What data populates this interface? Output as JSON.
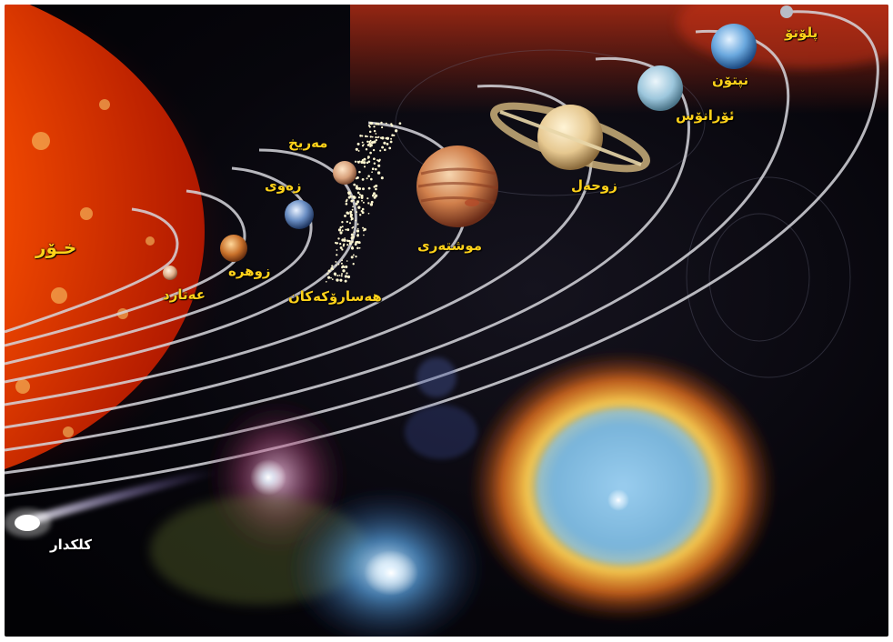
{
  "labels": {
    "sun": "خـۆر",
    "mercury": "عەتارد",
    "venus": "زوهرە",
    "earth": "زەوی",
    "mars": "مەریخ",
    "asteroids": "هەسارۆکەکان",
    "jupiter": "موشتەری",
    "saturn": "زوحەل",
    "uranus": "ئۆرانۆس",
    "neptune": "نپتۆن",
    "pluto": "پلۆتۆ",
    "comet": "کلکدار"
  },
  "colors": {
    "label": "#ffd21a",
    "comet_label": "#ffffff",
    "space": "#05050c",
    "sun": "#ff4a00"
  }
}
